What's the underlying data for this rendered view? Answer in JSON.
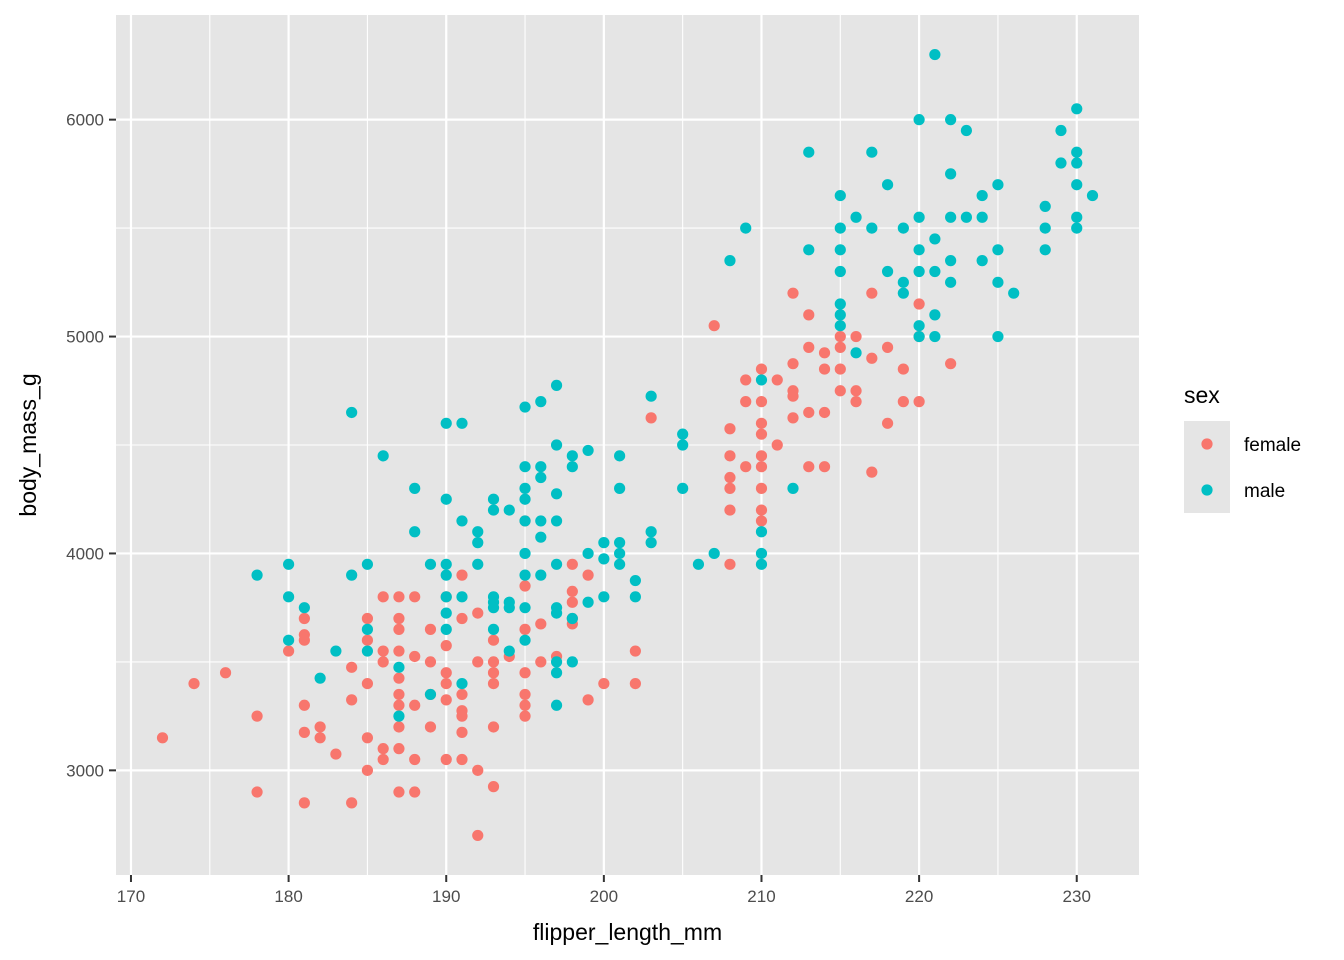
{
  "chart_data": {
    "type": "scatter",
    "xlabel": "flipper_length_mm",
    "ylabel": "body_mass_g",
    "xlim": [
      169.05,
      233.95
    ],
    "ylim": [
      2517.5,
      6482.5
    ],
    "x_ticks": [
      170,
      180,
      190,
      200,
      210,
      220,
      230
    ],
    "y_ticks": [
      3000,
      4000,
      5000,
      6000
    ],
    "grid": true,
    "legend": {
      "title": "sex",
      "position": "right"
    },
    "series": [
      {
        "name": "female",
        "color": "#F8766D",
        "points": [
          [
            172,
            3150
          ],
          [
            174,
            3400
          ],
          [
            176,
            3450
          ],
          [
            178,
            3250
          ],
          [
            178,
            2900
          ],
          [
            180,
            3550
          ],
          [
            181,
            3700
          ],
          [
            181,
            3625
          ],
          [
            181,
            3600
          ],
          [
            181,
            3300
          ],
          [
            181,
            3175
          ],
          [
            181,
            2850
          ],
          [
            182,
            3200
          ],
          [
            182,
            3150
          ],
          [
            183,
            3075
          ],
          [
            184,
            3475
          ],
          [
            184,
            3325
          ],
          [
            184,
            2850
          ],
          [
            185,
            3700
          ],
          [
            185,
            3600
          ],
          [
            185,
            3400
          ],
          [
            185,
            3150
          ],
          [
            185,
            3000
          ],
          [
            186,
            3800
          ],
          [
            186,
            3550
          ],
          [
            186,
            3500
          ],
          [
            186,
            3100
          ],
          [
            186,
            3050
          ],
          [
            187,
            3800
          ],
          [
            187,
            3700
          ],
          [
            187,
            3650
          ],
          [
            187,
            3550
          ],
          [
            187,
            3425
          ],
          [
            187,
            3350
          ],
          [
            187,
            3300
          ],
          [
            187,
            3200
          ],
          [
            187,
            3100
          ],
          [
            187,
            2900
          ],
          [
            188,
            3800
          ],
          [
            188,
            3525
          ],
          [
            188,
            3300
          ],
          [
            188,
            3050
          ],
          [
            188,
            2900
          ],
          [
            189,
            3650
          ],
          [
            189,
            3500
          ],
          [
            189,
            3350
          ],
          [
            189,
            3200
          ],
          [
            190,
            3800
          ],
          [
            190,
            3575
          ],
          [
            190,
            3450
          ],
          [
            190,
            3400
          ],
          [
            190,
            3325
          ],
          [
            190,
            3050
          ],
          [
            191,
            3900
          ],
          [
            191,
            3700
          ],
          [
            191,
            3350
          ],
          [
            191,
            3275
          ],
          [
            191,
            3250
          ],
          [
            191,
            3175
          ],
          [
            191,
            3050
          ],
          [
            192,
            3725
          ],
          [
            192,
            3500
          ],
          [
            192,
            3000
          ],
          [
            192,
            2700
          ],
          [
            193,
            3600
          ],
          [
            193,
            3500
          ],
          [
            193,
            3450
          ],
          [
            193,
            3400
          ],
          [
            193,
            3200
          ],
          [
            193,
            2925
          ],
          [
            194,
            3525
          ],
          [
            195,
            4150
          ],
          [
            195,
            3850
          ],
          [
            195,
            3650
          ],
          [
            195,
            3450
          ],
          [
            195,
            3350
          ],
          [
            195,
            3300
          ],
          [
            195,
            3250
          ],
          [
            196,
            3675
          ],
          [
            196,
            3500
          ],
          [
            197,
            3525
          ],
          [
            198,
            3950
          ],
          [
            198,
            3825
          ],
          [
            198,
            3775
          ],
          [
            198,
            3700
          ],
          [
            198,
            3675
          ],
          [
            199,
            3900
          ],
          [
            199,
            3325
          ],
          [
            200,
            3400
          ],
          [
            202,
            3550
          ],
          [
            202,
            3400
          ],
          [
            203,
            4625
          ],
          [
            207,
            5050
          ],
          [
            208,
            4575
          ],
          [
            208,
            4450
          ],
          [
            208,
            4350
          ],
          [
            208,
            4300
          ],
          [
            208,
            4200
          ],
          [
            208,
            3950
          ],
          [
            209,
            4800
          ],
          [
            209,
            4700
          ],
          [
            209,
            4400
          ],
          [
            210,
            4850
          ],
          [
            210,
            4700
          ],
          [
            210,
            4600
          ],
          [
            210,
            4550
          ],
          [
            210,
            4450
          ],
          [
            210,
            4400
          ],
          [
            210,
            4300
          ],
          [
            210,
            4200
          ],
          [
            210,
            4150
          ],
          [
            211,
            4500
          ],
          [
            211,
            4800
          ],
          [
            212,
            5200
          ],
          [
            212,
            4875
          ],
          [
            212,
            4750
          ],
          [
            212,
            4725
          ],
          [
            212,
            4625
          ],
          [
            213,
            5100
          ],
          [
            213,
            4950
          ],
          [
            213,
            4650
          ],
          [
            213,
            4400
          ],
          [
            214,
            4925
          ],
          [
            214,
            4850
          ],
          [
            214,
            4650
          ],
          [
            214,
            4400
          ],
          [
            215,
            5000
          ],
          [
            215,
            4950
          ],
          [
            215,
            4850
          ],
          [
            215,
            4750
          ],
          [
            216,
            5000
          ],
          [
            216,
            4750
          ],
          [
            216,
            4700
          ],
          [
            217,
            5200
          ],
          [
            217,
            4900
          ],
          [
            217,
            4375
          ],
          [
            218,
            4950
          ],
          [
            218,
            4600
          ],
          [
            219,
            4850
          ],
          [
            219,
            4700
          ],
          [
            220,
            5150
          ],
          [
            220,
            5000
          ],
          [
            220,
            4700
          ],
          [
            222,
            4875
          ]
        ]
      },
      {
        "name": "male",
        "color": "#00BFC4",
        "points": [
          [
            178,
            3900
          ],
          [
            180,
            3950
          ],
          [
            180,
            3800
          ],
          [
            180,
            3600
          ],
          [
            181,
            3750
          ],
          [
            182,
            3425
          ],
          [
            183,
            3550
          ],
          [
            184,
            4650
          ],
          [
            184,
            3900
          ],
          [
            185,
            3950
          ],
          [
            185,
            3650
          ],
          [
            185,
            3550
          ],
          [
            186,
            4450
          ],
          [
            187,
            3475
          ],
          [
            187,
            3250
          ],
          [
            188,
            4300
          ],
          [
            188,
            4100
          ],
          [
            189,
            3950
          ],
          [
            189,
            3350
          ],
          [
            190,
            4600
          ],
          [
            190,
            4250
          ],
          [
            190,
            3950
          ],
          [
            190,
            3900
          ],
          [
            190,
            3800
          ],
          [
            190,
            3725
          ],
          [
            190,
            3650
          ],
          [
            191,
            4600
          ],
          [
            191,
            4150
          ],
          [
            191,
            3800
          ],
          [
            191,
            3400
          ],
          [
            192,
            4100
          ],
          [
            192,
            4050
          ],
          [
            192,
            3950
          ],
          [
            193,
            4250
          ],
          [
            193,
            4200
          ],
          [
            193,
            3800
          ],
          [
            193,
            3775
          ],
          [
            193,
            3750
          ],
          [
            193,
            3650
          ],
          [
            194,
            4200
          ],
          [
            194,
            3775
          ],
          [
            194,
            3750
          ],
          [
            194,
            3550
          ],
          [
            195,
            4675
          ],
          [
            195,
            4400
          ],
          [
            195,
            4300
          ],
          [
            195,
            4250
          ],
          [
            195,
            4150
          ],
          [
            195,
            4000
          ],
          [
            195,
            3900
          ],
          [
            195,
            3750
          ],
          [
            195,
            3600
          ],
          [
            196,
            4700
          ],
          [
            196,
            4400
          ],
          [
            196,
            4350
          ],
          [
            196,
            4150
          ],
          [
            196,
            4075
          ],
          [
            196,
            3900
          ],
          [
            197,
            4775
          ],
          [
            197,
            4500
          ],
          [
            197,
            4275
          ],
          [
            197,
            4150
          ],
          [
            197,
            3950
          ],
          [
            197,
            3750
          ],
          [
            197,
            3725
          ],
          [
            197,
            3500
          ],
          [
            197,
            3450
          ],
          [
            197,
            3300
          ],
          [
            198,
            4450
          ],
          [
            198,
            4400
          ],
          [
            198,
            3700
          ],
          [
            198,
            3500
          ],
          [
            199,
            4475
          ],
          [
            199,
            4000
          ],
          [
            199,
            3775
          ],
          [
            200,
            4050
          ],
          [
            200,
            3975
          ],
          [
            200,
            3800
          ],
          [
            201,
            4450
          ],
          [
            201,
            4300
          ],
          [
            201,
            4050
          ],
          [
            201,
            4000
          ],
          [
            201,
            3950
          ],
          [
            202,
            3875
          ],
          [
            202,
            3800
          ],
          [
            203,
            4725
          ],
          [
            203,
            4100
          ],
          [
            203,
            4050
          ],
          [
            205,
            4550
          ],
          [
            205,
            4500
          ],
          [
            205,
            4300
          ],
          [
            206,
            3950
          ],
          [
            207,
            4000
          ],
          [
            208,
            5350
          ],
          [
            209,
            5500
          ],
          [
            210,
            4800
          ],
          [
            210,
            4100
          ],
          [
            210,
            4000
          ],
          [
            210,
            3950
          ],
          [
            212,
            4300
          ],
          [
            213,
            5850
          ],
          [
            213,
            5400
          ],
          [
            215,
            5650
          ],
          [
            215,
            5500
          ],
          [
            215,
            5400
          ],
          [
            215,
            5300
          ],
          [
            215,
            5150
          ],
          [
            215,
            5100
          ],
          [
            215,
            5050
          ],
          [
            216,
            5550
          ],
          [
            216,
            4925
          ],
          [
            217,
            5850
          ],
          [
            217,
            5500
          ],
          [
            218,
            5700
          ],
          [
            218,
            5300
          ],
          [
            219,
            5500
          ],
          [
            219,
            5250
          ],
          [
            219,
            5200
          ],
          [
            220,
            6000
          ],
          [
            220,
            5550
          ],
          [
            220,
            5400
          ],
          [
            220,
            5300
          ],
          [
            220,
            5050
          ],
          [
            220,
            5000
          ],
          [
            221,
            6300
          ],
          [
            221,
            5450
          ],
          [
            221,
            5300
          ],
          [
            221,
            5100
          ],
          [
            221,
            5000
          ],
          [
            222,
            6000
          ],
          [
            222,
            5750
          ],
          [
            222,
            5550
          ],
          [
            222,
            5350
          ],
          [
            222,
            5250
          ],
          [
            223,
            5950
          ],
          [
            223,
            5550
          ],
          [
            224,
            5650
          ],
          [
            224,
            5550
          ],
          [
            224,
            5350
          ],
          [
            225,
            5700
          ],
          [
            225,
            5400
          ],
          [
            225,
            5250
          ],
          [
            225,
            5000
          ],
          [
            226,
            5200
          ],
          [
            228,
            5600
          ],
          [
            228,
            5500
          ],
          [
            228,
            5400
          ],
          [
            229,
            5950
          ],
          [
            229,
            5800
          ],
          [
            230,
            6050
          ],
          [
            230,
            5850
          ],
          [
            230,
            5800
          ],
          [
            230,
            5700
          ],
          [
            230,
            5550
          ],
          [
            230,
            5500
          ],
          [
            231,
            5650
          ]
        ]
      }
    ]
  },
  "colors": {
    "panel_background": "#E5E5E5",
    "grid_major": "#FFFFFF",
    "tick_text": "#4D4D4D",
    "tick_mark": "#333333"
  }
}
